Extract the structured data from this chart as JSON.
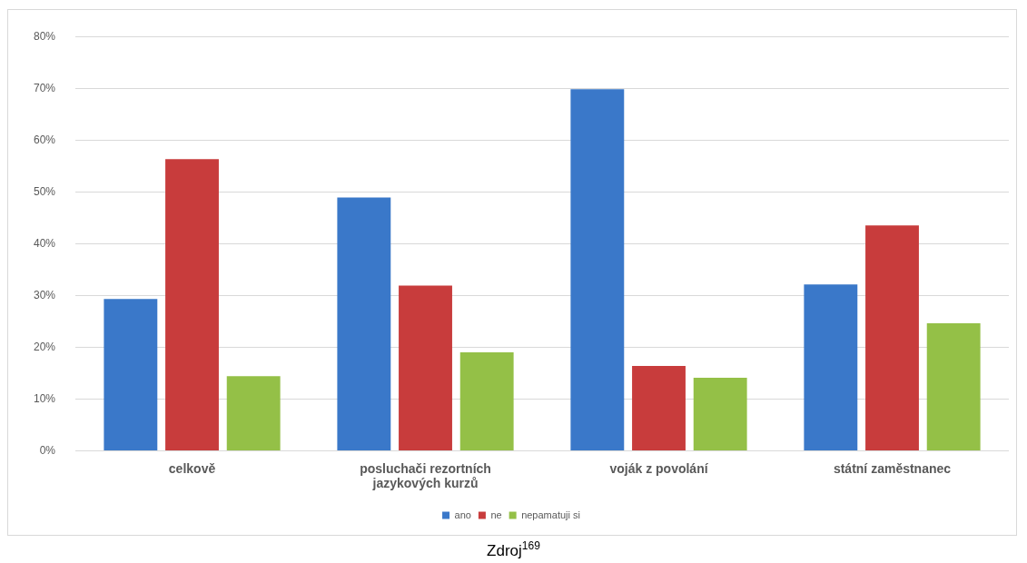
{
  "chart_data": {
    "type": "bar",
    "categories": [
      "celkově",
      "posluchači rezortních jazykových kurzů",
      "voják z povolání",
      "státní zaměstnanec"
    ],
    "series": [
      {
        "name": "ano",
        "color": "#3a78c9",
        "values": [
          29.3,
          48.9,
          69.8,
          32.1
        ]
      },
      {
        "name": "ne",
        "color": "#c83c3c",
        "values": [
          56.3,
          31.9,
          16.4,
          43.5
        ]
      },
      {
        "name": "nepamatuji si",
        "color": "#94c047",
        "values": [
          14.4,
          19.0,
          14.1,
          24.6
        ]
      }
    ],
    "ylim": [
      0,
      80
    ],
    "yticks": [
      {
        "value": 0,
        "label": "0%"
      },
      {
        "value": 10,
        "label": "10%"
      },
      {
        "value": 20,
        "label": "20%"
      },
      {
        "value": 30,
        "label": "30%"
      },
      {
        "value": 40,
        "label": "40%"
      },
      {
        "value": 50,
        "label": "50%"
      },
      {
        "value": 60,
        "label": "60%"
      },
      {
        "value": 70,
        "label": "70%"
      },
      {
        "value": 80,
        "label": "80%"
      }
    ],
    "grid": "y",
    "legend": "bottom",
    "annotations": [
      "Zdroj$^{169}$"
    ]
  }
}
